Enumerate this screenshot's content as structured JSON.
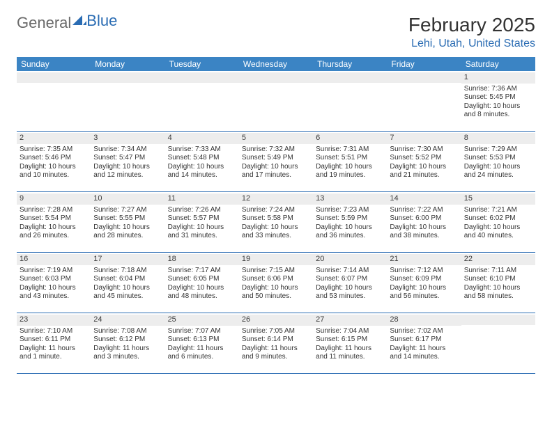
{
  "logo": {
    "text_grey": "General",
    "text_blue": "Blue"
  },
  "title": {
    "month": "February 2025",
    "location": "Lehi, Utah, United States"
  },
  "colors": {
    "header_bg": "#3b84c4",
    "header_text": "#ffffff",
    "accent": "#2a6cb3",
    "daynum_bg": "#ededed",
    "body_text": "#333333",
    "logo_grey": "#6a6a6a"
  },
  "day_names": [
    "Sunday",
    "Monday",
    "Tuesday",
    "Wednesday",
    "Thursday",
    "Friday",
    "Saturday"
  ],
  "weeks": [
    [
      {
        "n": "",
        "sunrise": "",
        "sunset": "",
        "daylight": ""
      },
      {
        "n": "",
        "sunrise": "",
        "sunset": "",
        "daylight": ""
      },
      {
        "n": "",
        "sunrise": "",
        "sunset": "",
        "daylight": ""
      },
      {
        "n": "",
        "sunrise": "",
        "sunset": "",
        "daylight": ""
      },
      {
        "n": "",
        "sunrise": "",
        "sunset": "",
        "daylight": ""
      },
      {
        "n": "",
        "sunrise": "",
        "sunset": "",
        "daylight": ""
      },
      {
        "n": "1",
        "sunrise": "Sunrise: 7:36 AM",
        "sunset": "Sunset: 5:45 PM",
        "daylight": "Daylight: 10 hours and 8 minutes."
      }
    ],
    [
      {
        "n": "2",
        "sunrise": "Sunrise: 7:35 AM",
        "sunset": "Sunset: 5:46 PM",
        "daylight": "Daylight: 10 hours and 10 minutes."
      },
      {
        "n": "3",
        "sunrise": "Sunrise: 7:34 AM",
        "sunset": "Sunset: 5:47 PM",
        "daylight": "Daylight: 10 hours and 12 minutes."
      },
      {
        "n": "4",
        "sunrise": "Sunrise: 7:33 AM",
        "sunset": "Sunset: 5:48 PM",
        "daylight": "Daylight: 10 hours and 14 minutes."
      },
      {
        "n": "5",
        "sunrise": "Sunrise: 7:32 AM",
        "sunset": "Sunset: 5:49 PM",
        "daylight": "Daylight: 10 hours and 17 minutes."
      },
      {
        "n": "6",
        "sunrise": "Sunrise: 7:31 AM",
        "sunset": "Sunset: 5:51 PM",
        "daylight": "Daylight: 10 hours and 19 minutes."
      },
      {
        "n": "7",
        "sunrise": "Sunrise: 7:30 AM",
        "sunset": "Sunset: 5:52 PM",
        "daylight": "Daylight: 10 hours and 21 minutes."
      },
      {
        "n": "8",
        "sunrise": "Sunrise: 7:29 AM",
        "sunset": "Sunset: 5:53 PM",
        "daylight": "Daylight: 10 hours and 24 minutes."
      }
    ],
    [
      {
        "n": "9",
        "sunrise": "Sunrise: 7:28 AM",
        "sunset": "Sunset: 5:54 PM",
        "daylight": "Daylight: 10 hours and 26 minutes."
      },
      {
        "n": "10",
        "sunrise": "Sunrise: 7:27 AM",
        "sunset": "Sunset: 5:55 PM",
        "daylight": "Daylight: 10 hours and 28 minutes."
      },
      {
        "n": "11",
        "sunrise": "Sunrise: 7:26 AM",
        "sunset": "Sunset: 5:57 PM",
        "daylight": "Daylight: 10 hours and 31 minutes."
      },
      {
        "n": "12",
        "sunrise": "Sunrise: 7:24 AM",
        "sunset": "Sunset: 5:58 PM",
        "daylight": "Daylight: 10 hours and 33 minutes."
      },
      {
        "n": "13",
        "sunrise": "Sunrise: 7:23 AM",
        "sunset": "Sunset: 5:59 PM",
        "daylight": "Daylight: 10 hours and 36 minutes."
      },
      {
        "n": "14",
        "sunrise": "Sunrise: 7:22 AM",
        "sunset": "Sunset: 6:00 PM",
        "daylight": "Daylight: 10 hours and 38 minutes."
      },
      {
        "n": "15",
        "sunrise": "Sunrise: 7:21 AM",
        "sunset": "Sunset: 6:02 PM",
        "daylight": "Daylight: 10 hours and 40 minutes."
      }
    ],
    [
      {
        "n": "16",
        "sunrise": "Sunrise: 7:19 AM",
        "sunset": "Sunset: 6:03 PM",
        "daylight": "Daylight: 10 hours and 43 minutes."
      },
      {
        "n": "17",
        "sunrise": "Sunrise: 7:18 AM",
        "sunset": "Sunset: 6:04 PM",
        "daylight": "Daylight: 10 hours and 45 minutes."
      },
      {
        "n": "18",
        "sunrise": "Sunrise: 7:17 AM",
        "sunset": "Sunset: 6:05 PM",
        "daylight": "Daylight: 10 hours and 48 minutes."
      },
      {
        "n": "19",
        "sunrise": "Sunrise: 7:15 AM",
        "sunset": "Sunset: 6:06 PM",
        "daylight": "Daylight: 10 hours and 50 minutes."
      },
      {
        "n": "20",
        "sunrise": "Sunrise: 7:14 AM",
        "sunset": "Sunset: 6:07 PM",
        "daylight": "Daylight: 10 hours and 53 minutes."
      },
      {
        "n": "21",
        "sunrise": "Sunrise: 7:12 AM",
        "sunset": "Sunset: 6:09 PM",
        "daylight": "Daylight: 10 hours and 56 minutes."
      },
      {
        "n": "22",
        "sunrise": "Sunrise: 7:11 AM",
        "sunset": "Sunset: 6:10 PM",
        "daylight": "Daylight: 10 hours and 58 minutes."
      }
    ],
    [
      {
        "n": "23",
        "sunrise": "Sunrise: 7:10 AM",
        "sunset": "Sunset: 6:11 PM",
        "daylight": "Daylight: 11 hours and 1 minute."
      },
      {
        "n": "24",
        "sunrise": "Sunrise: 7:08 AM",
        "sunset": "Sunset: 6:12 PM",
        "daylight": "Daylight: 11 hours and 3 minutes."
      },
      {
        "n": "25",
        "sunrise": "Sunrise: 7:07 AM",
        "sunset": "Sunset: 6:13 PM",
        "daylight": "Daylight: 11 hours and 6 minutes."
      },
      {
        "n": "26",
        "sunrise": "Sunrise: 7:05 AM",
        "sunset": "Sunset: 6:14 PM",
        "daylight": "Daylight: 11 hours and 9 minutes."
      },
      {
        "n": "27",
        "sunrise": "Sunrise: 7:04 AM",
        "sunset": "Sunset: 6:15 PM",
        "daylight": "Daylight: 11 hours and 11 minutes."
      },
      {
        "n": "28",
        "sunrise": "Sunrise: 7:02 AM",
        "sunset": "Sunset: 6:17 PM",
        "daylight": "Daylight: 11 hours and 14 minutes."
      },
      {
        "n": "",
        "sunrise": "",
        "sunset": "",
        "daylight": ""
      }
    ]
  ]
}
